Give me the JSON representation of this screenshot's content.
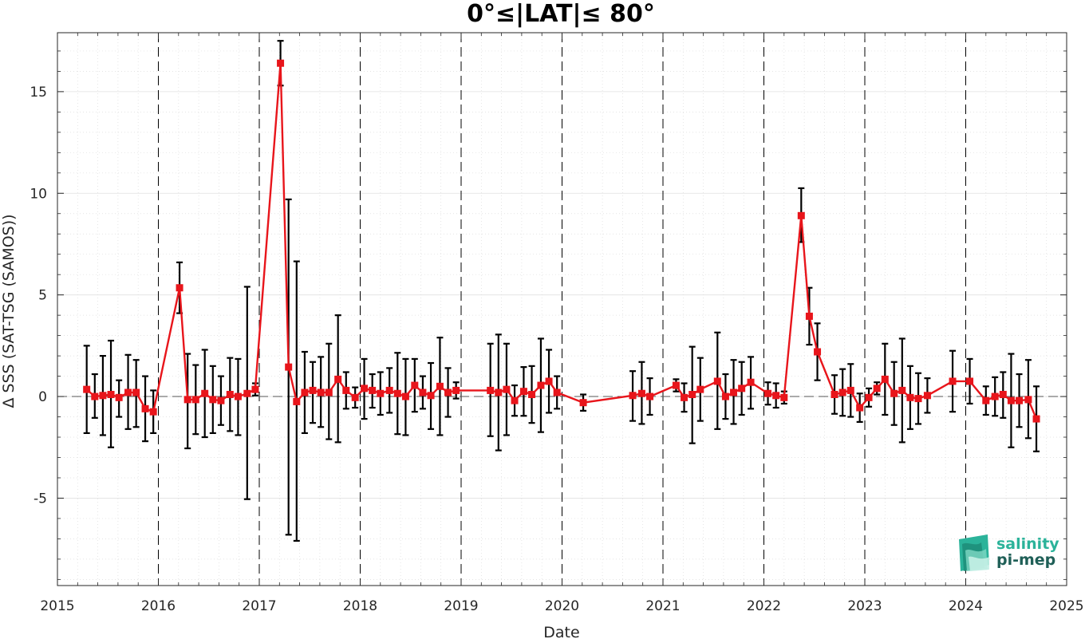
{
  "chart_data": {
    "type": "line",
    "title": "0°≤|LAT|≤ 80°",
    "xlabel": "Date",
    "ylabel": "Δ SSS (SAT-TSG (SAMOS))",
    "xlim": [
      2015,
      2025
    ],
    "ylim": [
      -9.3,
      17.9
    ],
    "x_ticks": [
      2015,
      2016,
      2017,
      2018,
      2019,
      2020,
      2021,
      2022,
      2023,
      2024,
      2025
    ],
    "x_tick_labels": [
      "2015",
      "2016",
      "2017",
      "2018",
      "2019",
      "2020",
      "2021",
      "2022",
      "2023",
      "2024",
      "2025"
    ],
    "y_ticks": [
      -5,
      0,
      5,
      10,
      15
    ],
    "y_tick_labels": [
      "-5",
      "0",
      "5",
      "10",
      "15"
    ],
    "grid": true,
    "zero_line": true,
    "year_lines": true,
    "series": [
      {
        "color": "#e8151b",
        "error_bar_color": "#000000",
        "marker": "square",
        "points": [
          {
            "x": 2015.29,
            "y": 0.35,
            "lo": -1.8,
            "hi": 2.5
          },
          {
            "x": 2015.37,
            "y": 0.0,
            "lo": -1.05,
            "hi": 1.1
          },
          {
            "x": 2015.45,
            "y": 0.05,
            "lo": -1.9,
            "hi": 2.0
          },
          {
            "x": 2015.53,
            "y": 0.1,
            "lo": -2.5,
            "hi": 2.75
          },
          {
            "x": 2015.61,
            "y": -0.05,
            "lo": -1.0,
            "hi": 0.8
          },
          {
            "x": 2015.7,
            "y": 0.2,
            "lo": -1.6,
            "hi": 2.05
          },
          {
            "x": 2015.78,
            "y": 0.2,
            "lo": -1.5,
            "hi": 1.8
          },
          {
            "x": 2015.87,
            "y": -0.6,
            "lo": -2.2,
            "hi": 1.0
          },
          {
            "x": 2015.95,
            "y": -0.75,
            "lo": -1.8,
            "hi": 0.3
          },
          {
            "x": 2016.21,
            "y": 5.35,
            "lo": 4.1,
            "hi": 6.6
          },
          {
            "x": 2016.29,
            "y": -0.15,
            "lo": -2.55,
            "hi": 2.1
          },
          {
            "x": 2016.37,
            "y": -0.15,
            "lo": -1.85,
            "hi": 1.55
          },
          {
            "x": 2016.46,
            "y": 0.15,
            "lo": -2.0,
            "hi": 2.3
          },
          {
            "x": 2016.54,
            "y": -0.15,
            "lo": -1.8,
            "hi": 1.5
          },
          {
            "x": 2016.62,
            "y": -0.2,
            "lo": -1.4,
            "hi": 1.0
          },
          {
            "x": 2016.71,
            "y": 0.1,
            "lo": -1.7,
            "hi": 1.9
          },
          {
            "x": 2016.79,
            "y": 0.0,
            "lo": -1.9,
            "hi": 1.85
          },
          {
            "x": 2016.88,
            "y": 0.15,
            "lo": -5.05,
            "hi": 5.4
          },
          {
            "x": 2016.96,
            "y": 0.35,
            "lo": 0.05,
            "hi": 0.65
          },
          {
            "x": 2017.21,
            "y": 16.4,
            "lo": 15.3,
            "hi": 17.5
          },
          {
            "x": 2017.29,
            "y": 1.45,
            "lo": -6.8,
            "hi": 9.7
          },
          {
            "x": 2017.37,
            "y": -0.25,
            "lo": -7.1,
            "hi": 6.65
          },
          {
            "x": 2017.45,
            "y": 0.2,
            "lo": -1.8,
            "hi": 2.2
          },
          {
            "x": 2017.53,
            "y": 0.3,
            "lo": -1.3,
            "hi": 1.7
          },
          {
            "x": 2017.61,
            "y": 0.2,
            "lo": -1.5,
            "hi": 1.95
          },
          {
            "x": 2017.69,
            "y": 0.2,
            "lo": -2.1,
            "hi": 2.6
          },
          {
            "x": 2017.78,
            "y": 0.85,
            "lo": -2.25,
            "hi": 4.0
          },
          {
            "x": 2017.86,
            "y": 0.3,
            "lo": -0.6,
            "hi": 1.2
          },
          {
            "x": 2017.95,
            "y": -0.05,
            "lo": -0.55,
            "hi": 0.45
          },
          {
            "x": 2018.04,
            "y": 0.4,
            "lo": -1.1,
            "hi": 1.85
          },
          {
            "x": 2018.12,
            "y": 0.3,
            "lo": -0.55,
            "hi": 1.1
          },
          {
            "x": 2018.2,
            "y": 0.15,
            "lo": -0.9,
            "hi": 1.2
          },
          {
            "x": 2018.29,
            "y": 0.3,
            "lo": -0.8,
            "hi": 1.4
          },
          {
            "x": 2018.37,
            "y": 0.15,
            "lo": -1.85,
            "hi": 2.15
          },
          {
            "x": 2018.45,
            "y": 0.0,
            "lo": -1.9,
            "hi": 1.85
          },
          {
            "x": 2018.54,
            "y": 0.55,
            "lo": -0.75,
            "hi": 1.85
          },
          {
            "x": 2018.62,
            "y": 0.2,
            "lo": -0.6,
            "hi": 1.0
          },
          {
            "x": 2018.7,
            "y": 0.05,
            "lo": -1.6,
            "hi": 1.65
          },
          {
            "x": 2018.79,
            "y": 0.5,
            "lo": -1.9,
            "hi": 2.9
          },
          {
            "x": 2018.87,
            "y": 0.2,
            "lo": -1.0,
            "hi": 1.4
          },
          {
            "x": 2018.95,
            "y": 0.3,
            "lo": -0.1,
            "hi": 0.7
          },
          {
            "x": 2019.29,
            "y": 0.3,
            "lo": -1.95,
            "hi": 2.6
          },
          {
            "x": 2019.37,
            "y": 0.2,
            "lo": -2.65,
            "hi": 3.05
          },
          {
            "x": 2019.45,
            "y": 0.35,
            "lo": -1.9,
            "hi": 2.6
          },
          {
            "x": 2019.53,
            "y": -0.2,
            "lo": -0.95,
            "hi": 0.55
          },
          {
            "x": 2019.62,
            "y": 0.25,
            "lo": -0.95,
            "hi": 1.45
          },
          {
            "x": 2019.7,
            "y": 0.1,
            "lo": -1.3,
            "hi": 1.5
          },
          {
            "x": 2019.79,
            "y": 0.55,
            "lo": -1.75,
            "hi": 2.85
          },
          {
            "x": 2019.87,
            "y": 0.75,
            "lo": -0.8,
            "hi": 2.3
          },
          {
            "x": 2019.95,
            "y": 0.2,
            "lo": -0.6,
            "hi": 1.0
          },
          {
            "x": 2020.21,
            "y": -0.3,
            "lo": -0.7,
            "hi": 0.1
          },
          {
            "x": 2020.7,
            "y": 0.05,
            "lo": -1.2,
            "hi": 1.25
          },
          {
            "x": 2020.79,
            "y": 0.15,
            "lo": -1.35,
            "hi": 1.7
          },
          {
            "x": 2020.87,
            "y": 0.0,
            "lo": -0.9,
            "hi": 0.9
          },
          {
            "x": 2021.13,
            "y": 0.55,
            "lo": 0.25,
            "hi": 0.85
          },
          {
            "x": 2021.21,
            "y": -0.05,
            "lo": -0.75,
            "hi": 0.65
          },
          {
            "x": 2021.29,
            "y": 0.1,
            "lo": -2.3,
            "hi": 2.45
          },
          {
            "x": 2021.37,
            "y": 0.35,
            "lo": -1.2,
            "hi": 1.9
          },
          {
            "x": 2021.54,
            "y": 0.75,
            "lo": -1.6,
            "hi": 3.15
          },
          {
            "x": 2021.62,
            "y": 0.0,
            "lo": -1.1,
            "hi": 1.1
          },
          {
            "x": 2021.7,
            "y": 0.2,
            "lo": -1.35,
            "hi": 1.8
          },
          {
            "x": 2021.78,
            "y": 0.4,
            "lo": -0.9,
            "hi": 1.7
          },
          {
            "x": 2021.87,
            "y": 0.7,
            "lo": -0.6,
            "hi": 1.95
          },
          {
            "x": 2022.04,
            "y": 0.15,
            "lo": -0.4,
            "hi": 0.7
          },
          {
            "x": 2022.12,
            "y": 0.05,
            "lo": -0.55,
            "hi": 0.65
          },
          {
            "x": 2022.2,
            "y": -0.05,
            "lo": -0.35,
            "hi": 0.25
          },
          {
            "x": 2022.37,
            "y": 8.9,
            "lo": 7.6,
            "hi": 10.25
          },
          {
            "x": 2022.45,
            "y": 3.95,
            "lo": 2.55,
            "hi": 5.35
          },
          {
            "x": 2022.53,
            "y": 2.2,
            "lo": 0.8,
            "hi": 3.6
          },
          {
            "x": 2022.7,
            "y": 0.1,
            "lo": -0.85,
            "hi": 1.05
          },
          {
            "x": 2022.78,
            "y": 0.2,
            "lo": -0.95,
            "hi": 1.35
          },
          {
            "x": 2022.86,
            "y": 0.3,
            "lo": -1.0,
            "hi": 1.6
          },
          {
            "x": 2022.95,
            "y": -0.55,
            "lo": -1.25,
            "hi": 0.15
          },
          {
            "x": 2023.04,
            "y": -0.05,
            "lo": -0.5,
            "hi": 0.4
          },
          {
            "x": 2023.12,
            "y": 0.4,
            "lo": 0.1,
            "hi": 0.7
          },
          {
            "x": 2023.2,
            "y": 0.85,
            "lo": -0.9,
            "hi": 2.6
          },
          {
            "x": 2023.29,
            "y": 0.15,
            "lo": -1.4,
            "hi": 1.7
          },
          {
            "x": 2023.37,
            "y": 0.3,
            "lo": -2.25,
            "hi": 2.85
          },
          {
            "x": 2023.45,
            "y": -0.05,
            "lo": -1.6,
            "hi": 1.5
          },
          {
            "x": 2023.53,
            "y": -0.1,
            "lo": -1.35,
            "hi": 1.15
          },
          {
            "x": 2023.62,
            "y": 0.05,
            "lo": -0.8,
            "hi": 0.9
          },
          {
            "x": 2023.87,
            "y": 0.75,
            "lo": -0.75,
            "hi": 2.25
          },
          {
            "x": 2024.04,
            "y": 0.75,
            "lo": -0.35,
            "hi": 1.85
          },
          {
            "x": 2024.2,
            "y": -0.2,
            "lo": -0.9,
            "hi": 0.5
          },
          {
            "x": 2024.29,
            "y": 0.0,
            "lo": -0.95,
            "hi": 0.95
          },
          {
            "x": 2024.37,
            "y": 0.1,
            "lo": -1.05,
            "hi": 1.2
          },
          {
            "x": 2024.45,
            "y": -0.2,
            "lo": -2.5,
            "hi": 2.1
          },
          {
            "x": 2024.53,
            "y": -0.2,
            "lo": -1.5,
            "hi": 1.1
          },
          {
            "x": 2024.62,
            "y": -0.15,
            "lo": -2.05,
            "hi": 1.8
          },
          {
            "x": 2024.7,
            "y": -1.1,
            "lo": -2.7,
            "hi": 0.5
          }
        ]
      }
    ]
  },
  "logo": {
    "line1": "salinity",
    "line2": "pi-mep",
    "color1": "#2bb39a",
    "color2": "#1f5f57"
  },
  "colors": {
    "line": "#e8151b",
    "error_bar": "#000000",
    "axis": "#262626",
    "grid": "#d9d9d9",
    "background": "#ffffff"
  }
}
